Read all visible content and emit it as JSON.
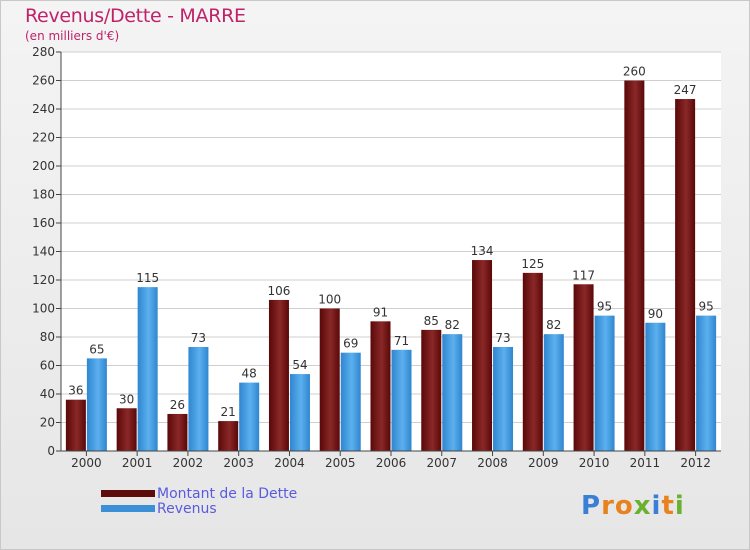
{
  "title": "Revenus/Dette - MARRE",
  "subtitle": "(en milliers d'€)",
  "logo_text": "Proxiti",
  "colors": {
    "title": "#c0226a",
    "dette": "#6e1212",
    "revenus": "#3a95dd",
    "legend_text": "#5a5ae0"
  },
  "chart_data": {
    "type": "bar",
    "categories": [
      "2000",
      "2001",
      "2002",
      "2003",
      "2004",
      "2005",
      "2006",
      "2007",
      "2008",
      "2009",
      "2010",
      "2011",
      "2012"
    ],
    "series": [
      {
        "name": "Montant de la Dette",
        "values": [
          36,
          30,
          26,
          21,
          106,
          100,
          91,
          85,
          134,
          125,
          117,
          260,
          247
        ]
      },
      {
        "name": "Revenus",
        "values": [
          65,
          115,
          73,
          48,
          54,
          69,
          71,
          82,
          73,
          82,
          95,
          90,
          95
        ]
      }
    ],
    "ylim": [
      0,
      280
    ],
    "yticks": [
      0,
      20,
      40,
      60,
      80,
      100,
      120,
      140,
      160,
      180,
      200,
      220,
      240,
      260,
      280
    ],
    "grid": true,
    "legend": "bottom-left"
  }
}
